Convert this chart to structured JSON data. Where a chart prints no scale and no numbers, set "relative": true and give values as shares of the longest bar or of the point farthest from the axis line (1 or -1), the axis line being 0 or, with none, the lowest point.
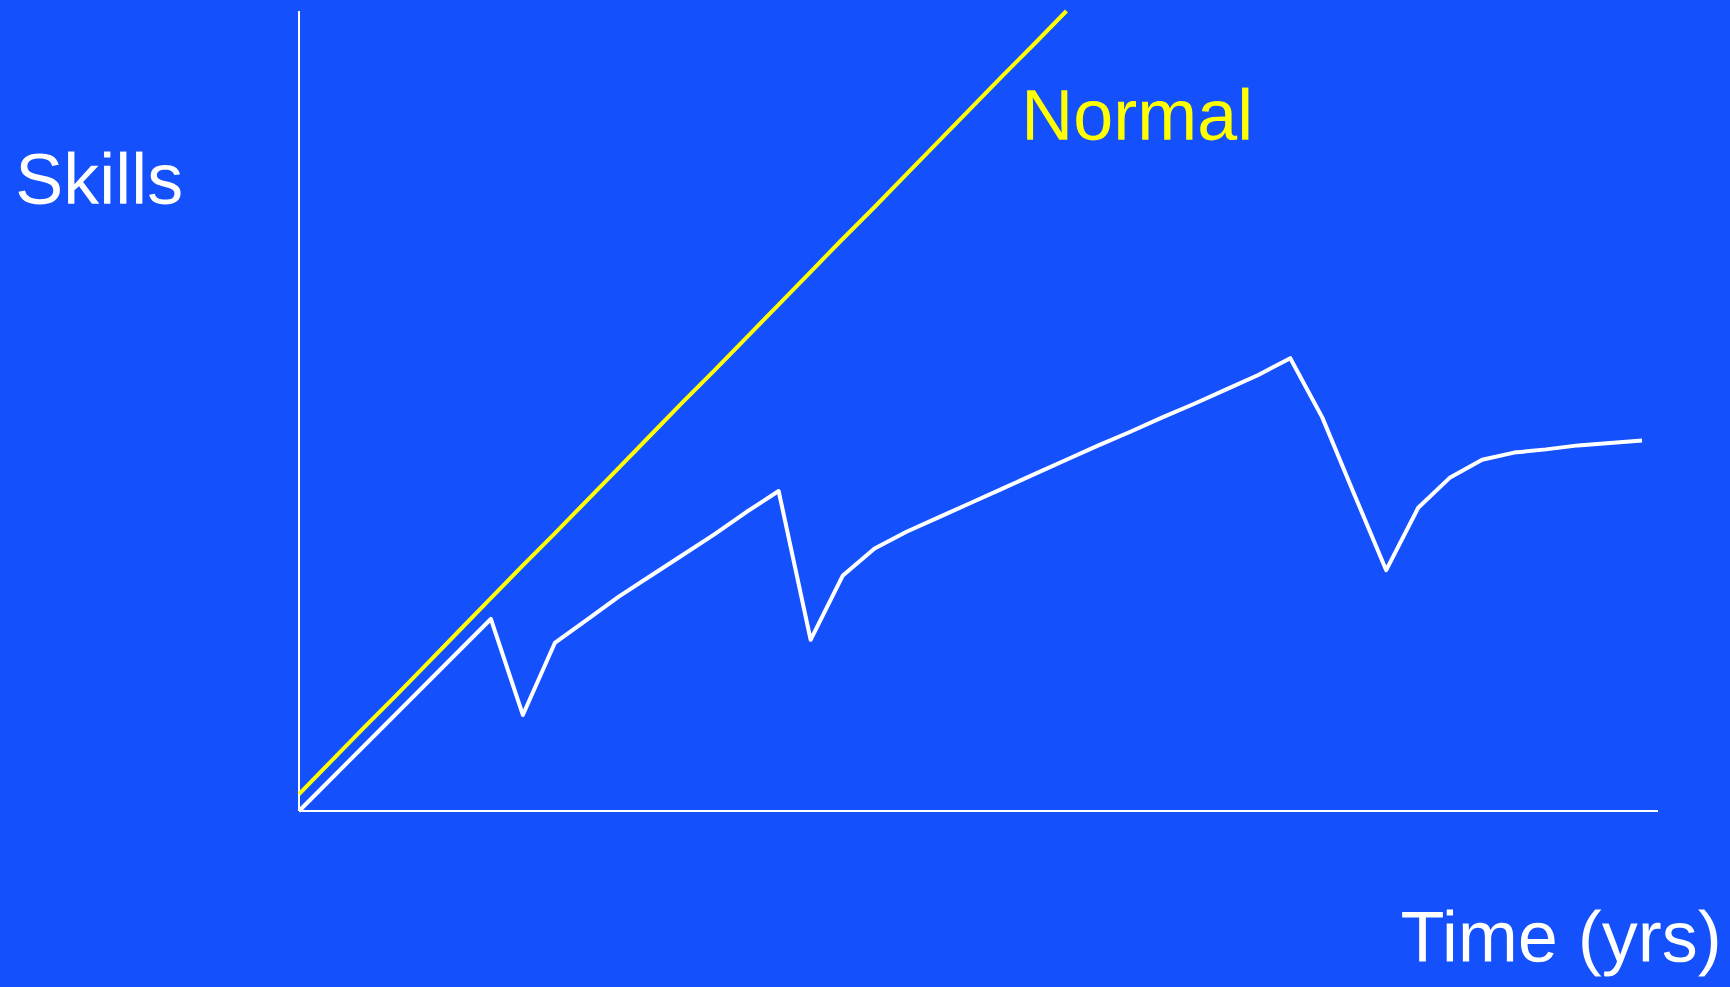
{
  "chart_data": {
    "type": "line",
    "relative": true,
    "xlabel": "Time (yrs)",
    "ylabel": "Skills",
    "marker": "none",
    "line_style": "solid",
    "categories": [
      null,
      null,
      null,
      null,
      null,
      null,
      null,
      null,
      null,
      null,
      null,
      null,
      null,
      null,
      null,
      null,
      null,
      null,
      null,
      null,
      null,
      null,
      null,
      null,
      null,
      null,
      null,
      null,
      null,
      null,
      null,
      null,
      null,
      null,
      null,
      null,
      null,
      null,
      null,
      null,
      null,
      null,
      null
    ],
    "series": [
      {
        "name": "Normal",
        "color": "#ffff00",
        "values": [
          0.021,
          0.062,
          0.103,
          0.143,
          0.184,
          0.225,
          0.266,
          0.307,
          0.347,
          0.388,
          0.429,
          0.47,
          0.511,
          0.551,
          0.592,
          0.633,
          0.674,
          0.715,
          0.755,
          0.796,
          0.837,
          0.878,
          0.919,
          0.959,
          1.0,
          null,
          null,
          null,
          null,
          null,
          null,
          null,
          null,
          null,
          null,
          null,
          null,
          null,
          null,
          null,
          null,
          null,
          null
        ]
      },
      {
        "color": "#ffffff",
        "values": [
          0,
          0.04,
          0.08,
          0.12,
          0.16,
          0.2,
          0.24,
          0.12,
          0.21,
          0.239,
          0.268,
          0.294,
          0.32,
          0.346,
          0.374,
          0.4,
          0.214,
          0.294,
          0.328,
          0.349,
          0.367,
          0.385,
          0.403,
          0.421,
          0.439,
          0.457,
          0.474,
          0.492,
          0.509,
          0.527,
          0.545,
          0.566,
          0.492,
          0.396,
          0.301,
          0.379,
          0.417,
          0.439,
          0.448,
          0.452,
          0.457,
          0.46,
          0.463
        ]
      }
    ]
  }
}
